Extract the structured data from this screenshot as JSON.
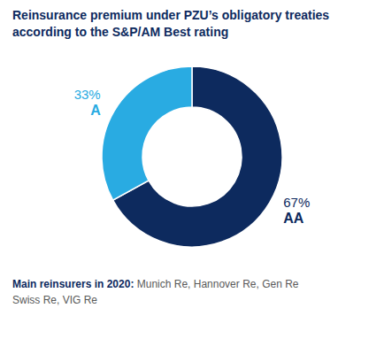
{
  "chart_data": {
    "type": "pie",
    "title": "Reinsurance premium under PZU’s obligatory treaties",
    "subtitle": "according to the S&P/AM Best rating",
    "categories": [
      "AA",
      "A"
    ],
    "values": [
      67,
      33
    ],
    "value_labels": [
      "67%",
      "33%"
    ],
    "colors": [
      "#0d2a5e",
      "#29abe2"
    ],
    "data_labels": true,
    "annotations": [
      "Main reinsurers in 2020:",
      "Munich Re, Hannover Re, Gen Re",
      "Swiss Re, VIG Re"
    ]
  }
}
